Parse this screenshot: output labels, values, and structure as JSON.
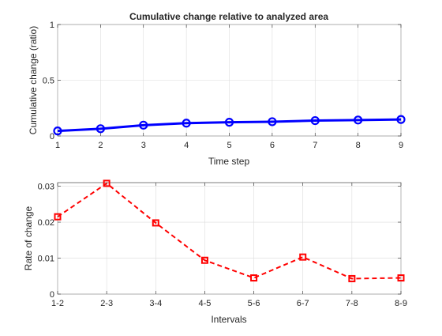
{
  "chart_data": [
    {
      "type": "line",
      "title": "Cumulative change relative to analyzed area",
      "xlabel": "Time step",
      "ylabel": "Cumulative change (ratio)",
      "x": [
        1,
        2,
        3,
        4,
        5,
        6,
        7,
        8,
        9
      ],
      "series": [
        {
          "values": [
            0.045,
            0.065,
            0.097,
            0.115,
            0.123,
            0.128,
            0.138,
            0.143,
            0.148
          ],
          "color": "#0000ff",
          "line_style": "solid",
          "marker": "circle"
        }
      ],
      "xlim": [
        1,
        9
      ],
      "ylim": [
        0,
        1
      ],
      "xticks": [
        "1",
        "2",
        "3",
        "4",
        "5",
        "6",
        "7",
        "8",
        "9"
      ],
      "yticks": [
        0,
        0.5,
        1
      ],
      "ytick_labels": [
        "0",
        "0.5",
        "1"
      ],
      "grid": true
    },
    {
      "type": "line",
      "title": "",
      "xlabel": "Intervals",
      "ylabel": "Rate of change",
      "categories": [
        "1-2",
        "2-3",
        "3-4",
        "4-5",
        "5-6",
        "6-7",
        "7-8",
        "8-9"
      ],
      "series": [
        {
          "values": [
            0.0215,
            0.0308,
            0.0198,
            0.0094,
            0.0045,
            0.0103,
            0.0043,
            0.0045
          ],
          "color": "#ff0000",
          "line_style": "dashed",
          "marker": "square"
        }
      ],
      "ylim": [
        0,
        0.031
      ],
      "yticks": [
        0,
        0.01,
        0.02,
        0.03
      ],
      "ytick_labels": [
        "0",
        "0.01",
        "0.02",
        "0.03"
      ],
      "grid": true
    }
  ]
}
